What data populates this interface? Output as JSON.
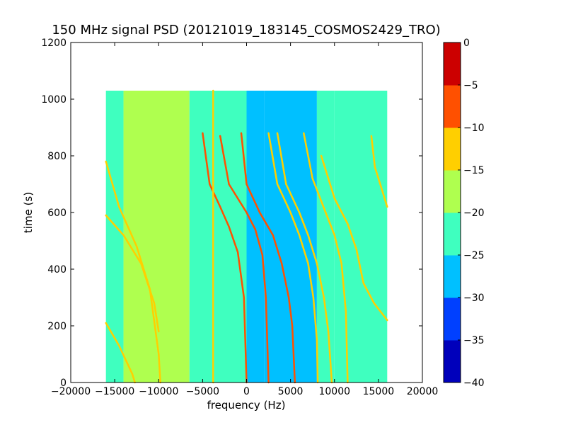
{
  "chart_data": {
    "type": "heatmap",
    "title": "150 MHz signal PSD (20121019_183145_COSMOS2429_TRO)",
    "xlabel": "frequency (Hz)",
    "ylabel": "time (s)",
    "xlim": [
      -20000,
      20000
    ],
    "ylim": [
      0,
      1200
    ],
    "x_ticks": [
      -20000,
      -15000,
      -10000,
      -5000,
      0,
      5000,
      10000,
      15000,
      20000
    ],
    "y_ticks": [
      0,
      200,
      400,
      600,
      800,
      1000,
      1200
    ],
    "x_tick_labels": [
      "−20000",
      "−15000",
      "−10000",
      "−5000",
      "0",
      "5000",
      "10000",
      "15000",
      "20000"
    ],
    "y_tick_labels": [
      "0",
      "200",
      "400",
      "600",
      "800",
      "1000",
      "1200"
    ],
    "data_extent": {
      "x": [
        -16000,
        16000
      ],
      "y": [
        0,
        1030
      ]
    },
    "colormap": "jet",
    "colorbar": {
      "vmin": -40,
      "vmax": 0,
      "levels": [
        -40,
        -35,
        -30,
        -25,
        -20,
        -15,
        -10,
        -5,
        0
      ],
      "tick_labels": [
        "−40",
        "−35",
        "−30",
        "−25",
        "−20",
        "−15",
        "−10",
        "−5",
        "0"
      ],
      "colors": [
        "#0000bb",
        "#0040ff",
        "#00c0ff",
        "#3fffbf",
        "#afff4f",
        "#ffcf00",
        "#ff5000",
        "#cc0000"
      ]
    },
    "background_bands": [
      {
        "x": [
          -16000,
          -14000
        ],
        "level": -22
      },
      {
        "x": [
          -14000,
          -6500
        ],
        "level": -18
      },
      {
        "x": [
          -6500,
          0
        ],
        "level": -22
      },
      {
        "x": [
          0,
          2000
        ],
        "level": -27
      },
      {
        "x": [
          2000,
          8000
        ],
        "level": -28
      },
      {
        "x": [
          8000,
          10000
        ],
        "level": -23
      },
      {
        "x": [
          10000,
          16000
        ],
        "level": -22
      }
    ],
    "series": [
      {
        "level": -12,
        "points": [
          [
            -16000,
            210
          ],
          [
            -14500,
            130
          ],
          [
            -13000,
            30
          ],
          [
            -12700,
            0
          ]
        ]
      },
      {
        "level": -13,
        "points": [
          [
            -16000,
            780
          ],
          [
            -14500,
            620
          ],
          [
            -12500,
            480
          ],
          [
            -11000,
            330
          ],
          [
            -10000,
            100
          ],
          [
            -9800,
            0
          ]
        ]
      },
      {
        "level": -15,
        "points": [
          [
            -16000,
            590
          ],
          [
            -14000,
            520
          ],
          [
            -12000,
            420
          ],
          [
            -10500,
            280
          ],
          [
            -10000,
            180
          ]
        ]
      },
      {
        "level": -10,
        "points": [
          [
            -5000,
            880
          ],
          [
            -4200,
            700
          ],
          [
            -3000,
            620
          ],
          [
            -2000,
            550
          ],
          [
            -1000,
            460
          ],
          [
            -300,
            300
          ],
          [
            0,
            0
          ]
        ]
      },
      {
        "level": -10,
        "points": [
          [
            -3000,
            870
          ],
          [
            -2000,
            700
          ],
          [
            0,
            600
          ],
          [
            1000,
            540
          ],
          [
            1800,
            450
          ],
          [
            2200,
            300
          ],
          [
            2500,
            0
          ]
        ]
      },
      {
        "level": -10,
        "points": [
          [
            -600,
            880
          ],
          [
            0,
            700
          ],
          [
            1500,
            600
          ],
          [
            3000,
            520
          ],
          [
            4000,
            420
          ],
          [
            4800,
            300
          ],
          [
            5200,
            200
          ],
          [
            5500,
            0
          ]
        ]
      },
      {
        "level": -12,
        "points": [
          [
            3500,
            880
          ],
          [
            4500,
            700
          ],
          [
            6000,
            600
          ],
          [
            7000,
            520
          ],
          [
            8000,
            420
          ],
          [
            8800,
            300
          ],
          [
            9300,
            180
          ],
          [
            9700,
            0
          ]
        ]
      },
      {
        "level": -13,
        "points": [
          [
            2500,
            880
          ],
          [
            3500,
            700
          ],
          [
            5000,
            600
          ],
          [
            6000,
            520
          ],
          [
            7000,
            420
          ],
          [
            7600,
            300
          ],
          [
            8000,
            150
          ],
          [
            8100,
            0
          ]
        ]
      },
      {
        "level": -15,
        "points": [
          [
            6500,
            880
          ],
          [
            7500,
            720
          ],
          [
            9000,
            600
          ],
          [
            10000,
            520
          ],
          [
            10800,
            420
          ],
          [
            11300,
            250
          ],
          [
            11500,
            0
          ]
        ]
      },
      {
        "level": -14,
        "points": [
          [
            8500,
            800
          ],
          [
            10000,
            650
          ],
          [
            11500,
            560
          ],
          [
            12500,
            470
          ],
          [
            13300,
            350
          ],
          [
            14500,
            280
          ],
          [
            16000,
            220
          ]
        ]
      },
      {
        "level": -15,
        "points": [
          [
            14200,
            870
          ],
          [
            14600,
            760
          ],
          [
            15200,
            700
          ],
          [
            16000,
            620
          ]
        ]
      },
      {
        "level": -15,
        "points": [
          [
            -3800,
            1030
          ],
          [
            -3800,
            0
          ]
        ]
      }
    ]
  }
}
